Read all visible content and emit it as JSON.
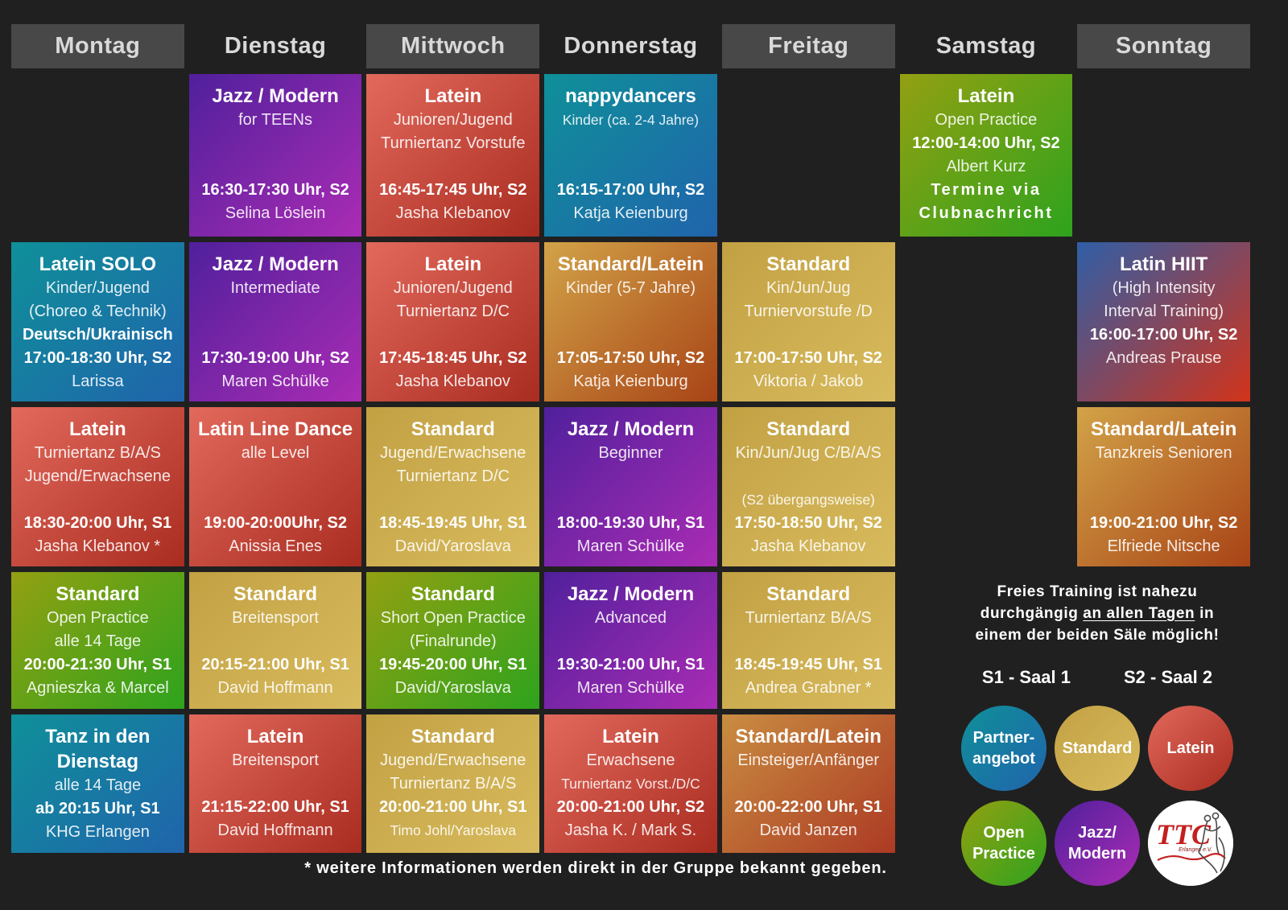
{
  "page": {
    "background": "#202020",
    "footnote": "* weitere Informationen werden direkt in der Gruppe bekannt gegeben."
  },
  "palette": {
    "latein": [
      "#e2695c",
      "#a92c20"
    ],
    "standard": [
      "#c2a143",
      "#d8bb5e"
    ],
    "jazz": [
      "#50209c",
      "#aa2cb4"
    ],
    "partner": [
      "#0f9099",
      "#2064ac"
    ],
    "open": [
      "#93a012",
      "#2ea31d"
    ],
    "standard_latein": [
      "#d2a348",
      "#a84316"
    ],
    "standard_latein_red": [
      "#c98d41",
      "#ac3a24"
    ],
    "latin_hiit": [
      "#2f5ea6",
      "#d2331a"
    ],
    "header_box": "#484848"
  },
  "days": [
    {
      "label": "Montag",
      "boxed": true
    },
    {
      "label": "Dienstag",
      "boxed": false
    },
    {
      "label": "Mittwoch",
      "boxed": true
    },
    {
      "label": "Donnerstag",
      "boxed": false
    },
    {
      "label": "Freitag",
      "boxed": true
    },
    {
      "label": "Samstag",
      "boxed": false
    },
    {
      "label": "Sonntag",
      "boxed": true
    }
  ],
  "cards": [
    {
      "day": 2,
      "row": 1,
      "category": "jazz",
      "lines": [
        {
          "t": "Jazz / Modern",
          "h": true
        },
        {
          "t": "for TEENs"
        },
        {
          "t": ""
        },
        {
          "t": ""
        },
        {
          "t": "16:30-17:30 Uhr, S2",
          "b": true
        },
        {
          "t": "Selina Löslein"
        }
      ]
    },
    {
      "day": 3,
      "row": 1,
      "category": "latein",
      "lines": [
        {
          "t": "Latein",
          "h": true
        },
        {
          "t": "Junioren/Jugend"
        },
        {
          "t": "Turniertanz Vorstufe"
        },
        {
          "t": ""
        },
        {
          "t": "16:45-17:45 Uhr, S2",
          "b": true
        },
        {
          "t": "Jasha Klebanov"
        }
      ]
    },
    {
      "day": 4,
      "row": 1,
      "category": "partner",
      "lines": [
        {
          "t": "nappydancers",
          "h": true
        },
        {
          "t": "Kinder (ca. 2-4 Jahre)",
          "sm": true
        },
        {
          "t": ""
        },
        {
          "t": ""
        },
        {
          "t": "16:15-17:00 Uhr, S2",
          "b": true
        },
        {
          "t": "Katja Keienburg"
        }
      ]
    },
    {
      "day": 6,
      "row": 1,
      "category": "open",
      "lines": [
        {
          "t": "Latein",
          "h": true
        },
        {
          "t": "Open Practice"
        },
        {
          "t": "12:00-14:00 Uhr, S2",
          "b": true
        },
        {
          "t": "Albert Kurz"
        },
        {
          "t": "Termine via",
          "b": true,
          "s": true
        },
        {
          "t": "Clubnachricht",
          "b": true,
          "s": true
        }
      ]
    },
    {
      "day": 1,
      "row": 2,
      "category": "partner",
      "lines": [
        {
          "t": "Latein SOLO",
          "h": true
        },
        {
          "t": "Kinder/Jugend"
        },
        {
          "t": "(Choreo & Technik)"
        },
        {
          "t": "Deutsch/Ukrainisch",
          "b": true
        },
        {
          "t": "17:00-18:30 Uhr, S2",
          "b": true
        },
        {
          "t": "Larissa"
        }
      ]
    },
    {
      "day": 2,
      "row": 2,
      "category": "jazz",
      "lines": [
        {
          "t": "Jazz / Modern",
          "h": true
        },
        {
          "t": "Intermediate"
        },
        {
          "t": ""
        },
        {
          "t": ""
        },
        {
          "t": "17:30-19:00 Uhr, S2",
          "b": true
        },
        {
          "t": "Maren Schülke"
        }
      ]
    },
    {
      "day": 3,
      "row": 2,
      "category": "latein",
      "lines": [
        {
          "t": "Latein",
          "h": true
        },
        {
          "t": "Junioren/Jugend"
        },
        {
          "t": "Turniertanz D/C"
        },
        {
          "t": ""
        },
        {
          "t": "17:45-18:45 Uhr, S2",
          "b": true
        },
        {
          "t": "Jasha Klebanov"
        }
      ]
    },
    {
      "day": 4,
      "row": 2,
      "category": "standard_latein",
      "lines": [
        {
          "t": "Standard/Latein",
          "h": true
        },
        {
          "t": "Kinder (5-7 Jahre)"
        },
        {
          "t": ""
        },
        {
          "t": ""
        },
        {
          "t": "17:05-17:50 Uhr, S2",
          "b": true
        },
        {
          "t": "Katja Keienburg"
        }
      ]
    },
    {
      "day": 5,
      "row": 2,
      "category": "standard",
      "lines": [
        {
          "t": "Standard",
          "h": true
        },
        {
          "t": "Kin/Jun/Jug"
        },
        {
          "t": "Turniervorstufe /D"
        },
        {
          "t": ""
        },
        {
          "t": "17:00-17:50 Uhr, S2",
          "b": true
        },
        {
          "t": "Viktoria / Jakob"
        }
      ]
    },
    {
      "day": 7,
      "row": 2,
      "category": "latin_hiit",
      "lines": [
        {
          "t": "Latin HIIT",
          "h": true
        },
        {
          "t": "(High Intensity"
        },
        {
          "t": "Interval Training)"
        },
        {
          "t": "16:00-17:00 Uhr, S2",
          "b": true
        },
        {
          "t": "Andreas Prause"
        }
      ]
    },
    {
      "day": 1,
      "row": 3,
      "category": "latein",
      "lines": [
        {
          "t": "Latein",
          "h": true
        },
        {
          "t": "Turniertanz B/A/S"
        },
        {
          "t": "Jugend/Erwachsene"
        },
        {
          "t": ""
        },
        {
          "t": "18:30-20:00 Uhr, S1",
          "b": true
        },
        {
          "t": "Jasha Klebanov *"
        }
      ]
    },
    {
      "day": 2,
      "row": 3,
      "category": "latein",
      "lines": [
        {
          "t": "Latin Line Dance",
          "h": true
        },
        {
          "t": "alle Level"
        },
        {
          "t": ""
        },
        {
          "t": ""
        },
        {
          "t": "19:00-20:00Uhr, S2",
          "b": true
        },
        {
          "t": "Anissia Enes"
        }
      ]
    },
    {
      "day": 3,
      "row": 3,
      "category": "standard",
      "lines": [
        {
          "t": "Standard",
          "h": true
        },
        {
          "t": "Jugend/Erwachsene"
        },
        {
          "t": "Turniertanz D/C"
        },
        {
          "t": ""
        },
        {
          "t": "18:45-19:45 Uhr, S1",
          "b": true
        },
        {
          "t": "David/Yaroslava"
        }
      ]
    },
    {
      "day": 4,
      "row": 3,
      "category": "jazz",
      "lines": [
        {
          "t": "Jazz / Modern",
          "h": true
        },
        {
          "t": "Beginner"
        },
        {
          "t": ""
        },
        {
          "t": ""
        },
        {
          "t": "18:00-19:30 Uhr, S1",
          "b": true
        },
        {
          "t": "Maren Schülke"
        }
      ]
    },
    {
      "day": 5,
      "row": 3,
      "category": "standard",
      "lines": [
        {
          "t": "Standard",
          "h": true
        },
        {
          "t": "Kin/Jun/Jug C/B/A/S"
        },
        {
          "t": ""
        },
        {
          "t": "(S2 übergangsweise)",
          "sm": true
        },
        {
          "t": "17:50-18:50 Uhr, S2",
          "b": true
        },
        {
          "t": "Jasha Klebanov"
        }
      ]
    },
    {
      "day": 7,
      "row": 3,
      "category": "standard_latein",
      "lines": [
        {
          "t": "Standard/Latein",
          "h": true
        },
        {
          "t": "Tanzkreis Senioren"
        },
        {
          "t": ""
        },
        {
          "t": ""
        },
        {
          "t": "19:00-21:00 Uhr, S2",
          "b": true
        },
        {
          "t": "Elfriede Nitsche"
        }
      ]
    },
    {
      "day": 1,
      "row": 4,
      "category": "open",
      "lines": [
        {
          "t": "Standard",
          "h": true
        },
        {
          "t": "Open Practice"
        },
        {
          "t": "alle 14 Tage"
        },
        {
          "t": "20:00-21:30 Uhr, S1",
          "b": true
        },
        {
          "t": "Agnieszka & Marcel"
        }
      ]
    },
    {
      "day": 2,
      "row": 4,
      "category": "standard",
      "lines": [
        {
          "t": "Standard",
          "h": true
        },
        {
          "t": "Breitensport"
        },
        {
          "t": ""
        },
        {
          "t": "20:15-21:00 Uhr, S1",
          "b": true
        },
        {
          "t": "David Hoffmann"
        }
      ]
    },
    {
      "day": 3,
      "row": 4,
      "category": "open",
      "lines": [
        {
          "t": "Standard",
          "h": true
        },
        {
          "t": "Short Open Practice"
        },
        {
          "t": "(Finalrunde)"
        },
        {
          "t": "19:45-20:00 Uhr, S1",
          "b": true
        },
        {
          "t": "David/Yaroslava"
        }
      ]
    },
    {
      "day": 4,
      "row": 4,
      "category": "jazz",
      "lines": [
        {
          "t": "Jazz / Modern",
          "h": true
        },
        {
          "t": "Advanced"
        },
        {
          "t": ""
        },
        {
          "t": "19:30-21:00 Uhr, S1",
          "b": true
        },
        {
          "t": "Maren Schülke"
        }
      ]
    },
    {
      "day": 5,
      "row": 4,
      "category": "standard",
      "lines": [
        {
          "t": "Standard",
          "h": true
        },
        {
          "t": "Turniertanz B/A/S"
        },
        {
          "t": ""
        },
        {
          "t": "18:45-19:45 Uhr, S1",
          "b": true
        },
        {
          "t": "Andrea Grabner *"
        }
      ]
    },
    {
      "day": 1,
      "row": 5,
      "category": "partner",
      "lines": [
        {
          "t": "Tanz in den",
          "h": true
        },
        {
          "t": "Dienstag",
          "h": true
        },
        {
          "t": "alle 14 Tage"
        },
        {
          "t": "ab 20:15 Uhr, S1",
          "b": true
        },
        {
          "t": "KHG Erlangen"
        }
      ]
    },
    {
      "day": 2,
      "row": 5,
      "category": "latein",
      "lines": [
        {
          "t": "Latein",
          "h": true
        },
        {
          "t": "Breitensport"
        },
        {
          "t": ""
        },
        {
          "t": "21:15-22:00 Uhr, S1",
          "b": true
        },
        {
          "t": "David Hoffmann"
        }
      ]
    },
    {
      "day": 3,
      "row": 5,
      "category": "standard",
      "lines": [
        {
          "t": "Standard",
          "h": true
        },
        {
          "t": "Jugend/Erwachsene"
        },
        {
          "t": "Turniertanz B/A/S"
        },
        {
          "t": "20:00-21:00 Uhr, S1",
          "b": true
        },
        {
          "t": "Timo Johl/Yaroslava",
          "sm": true
        }
      ]
    },
    {
      "day": 4,
      "row": 5,
      "category": "latein",
      "lines": [
        {
          "t": "Latein",
          "h": true
        },
        {
          "t": "Erwachsene"
        },
        {
          "t": "Turniertanz Vorst./D/C",
          "sm": true
        },
        {
          "t": "20:00-21:00 Uhr, S2",
          "b": true
        },
        {
          "t": "Jasha K. / Mark S."
        }
      ]
    },
    {
      "day": 5,
      "row": 5,
      "category": "standard_latein_red",
      "lines": [
        {
          "t": "Standard/Latein",
          "h": true
        },
        {
          "t": "Einsteiger/Anfänger"
        },
        {
          "t": ""
        },
        {
          "t": "20:00-22:00 Uhr, S1",
          "b": true
        },
        {
          "t": "David Janzen"
        }
      ]
    }
  ],
  "info": {
    "note_line1": "Freies Training ist nahezu",
    "note_line2_pre": "durchgängig ",
    "note_line2_underlined": "an allen Tagen",
    "note_line2_post": " in",
    "note_line3": "einem der beiden Säle möglich!",
    "hall1": "S1 - Saal 1",
    "hall2": "S2 - Saal 2"
  },
  "legend": [
    {
      "category": "partner",
      "lines": [
        "Partner-",
        "angebot"
      ]
    },
    {
      "category": "standard",
      "lines": [
        "Standard"
      ]
    },
    {
      "category": "latein",
      "lines": [
        "Latein"
      ]
    },
    {
      "category": "open",
      "lines": [
        "Open",
        "Practice"
      ]
    },
    {
      "category": "jazz",
      "lines": [
        "Jazz/",
        "Modern"
      ]
    }
  ],
  "logo": {
    "text": "TTC",
    "subtext": "Erlangen e.V."
  }
}
